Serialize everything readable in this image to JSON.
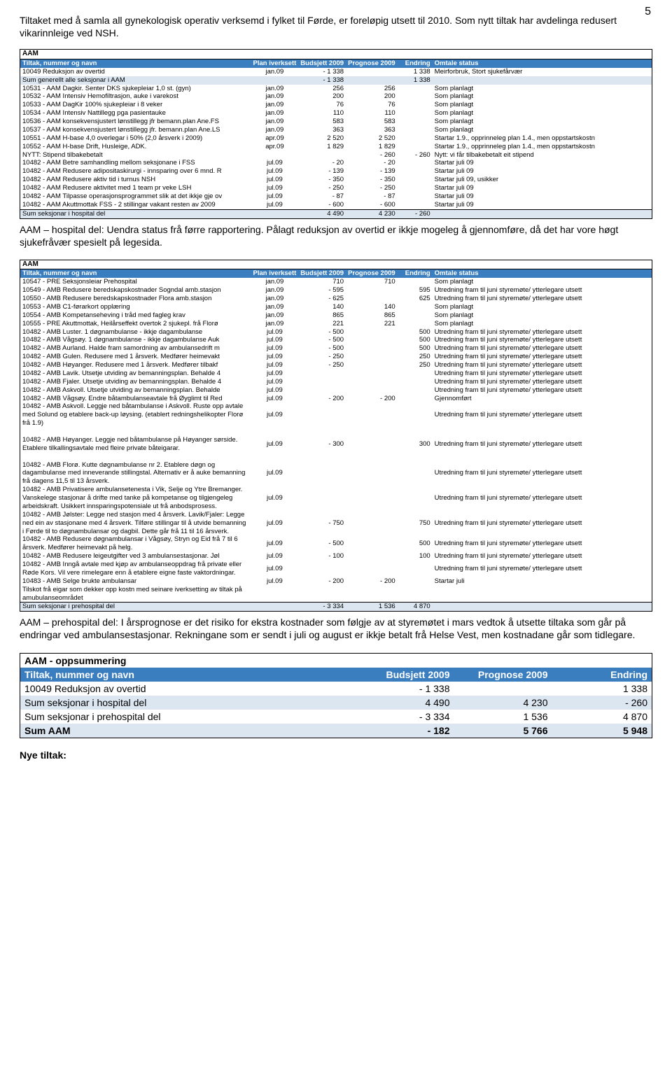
{
  "page_number": "5",
  "intro": "Tiltaket med å samla all gynekologisk operativ verksemd i fylket til Førde, er foreløpig utsett til 2010. Som nytt tiltak har avdelinga redusert vikarinnleige ved NSH.",
  "colors": {
    "header_bg": "#3a7ebf",
    "header_text": "#ffffff",
    "shade": "#dce6f1",
    "border": "#000000"
  },
  "tbl1": {
    "section": "AAM",
    "headers": {
      "name": "Tiltak, nummer og navn",
      "plan": "Plan iverksett",
      "bud": "Budsjett 2009",
      "prog": "Prognose 2009",
      "end": "Endring",
      "stat": "Omtale status"
    },
    "rows": [
      {
        "n": "10049 Reduksjon av overtid",
        "p": "jan.09",
        "b": "- 1 338",
        "pr": "",
        "e": "1 338",
        "s": "Meirforbruk, Stort sjukefårvær"
      },
      {
        "n": "Sum generellt alle seksjonar i AAM",
        "p": "",
        "b": "- 1 338",
        "pr": "",
        "e": "1 338",
        "s": "",
        "shade": true
      },
      {
        "n": "10531 - AAM Dagkir. Senter DKS sjukepleiar 1,0 st. (gyn)",
        "p": "jan.09",
        "b": "256",
        "pr": "256",
        "e": "",
        "s": "Som planlagt"
      },
      {
        "n": "10532 - AAM Intensiv Hemofiltrasjon, auke i varekost",
        "p": "jan.09",
        "b": "200",
        "pr": "200",
        "e": "",
        "s": "Som planlagt"
      },
      {
        "n": "10533 - AAM DagKir 100% sjukepleiar i 8 veker",
        "p": "jan.09",
        "b": "76",
        "pr": "76",
        "e": "",
        "s": "Som planlagt"
      },
      {
        "n": "10534 - AAM Intensiv Nattillegg pga pasientauke",
        "p": "jan.09",
        "b": "110",
        "pr": "110",
        "e": "",
        "s": "Som planlagt"
      },
      {
        "n": "10536 - AAM konsekvensjustert lønstillegg jfr bemann.plan Ane.FS",
        "p": "jan.09",
        "b": "583",
        "pr": "583",
        "e": "",
        "s": "Som planlagt"
      },
      {
        "n": "10537 - AAM konsekvensjustert lønstillegg jfr. bemann.plan Ane.LS",
        "p": "jan.09",
        "b": "363",
        "pr": "363",
        "e": "",
        "s": "Som planlagt"
      },
      {
        "n": "10551 - AAM H-base  4,0 overlegar i 50% (2,0 årsverk i 2009)",
        "p": "apr.09",
        "b": "2 520",
        "pr": "2 520",
        "e": "",
        "s": "Startar 1.9., opprinneleg plan 1.4., men oppstartskostn"
      },
      {
        "n": "10552 - AAM H-base  Drift, Husleige, ADK.",
        "p": "apr.09",
        "b": "1 829",
        "pr": "1 829",
        "e": "",
        "s": "Startar 1.9., opprinneleg plan 1.4., men oppstartskostn"
      },
      {
        "n": "NYTT: Stipend tilbakebetalt",
        "p": "",
        "b": "",
        "pr": "- 260",
        "e": "- 260",
        "s": "Nytt: vi får tilbakebetalt eit stipend"
      },
      {
        "n": "10482 - AAM Betre samhandling mellom seksjonane i FSS",
        "p": "jul.09",
        "b": "- 20",
        "pr": "- 20",
        "e": "",
        "s": "Startar juli 09"
      },
      {
        "n": "10482 - AAM Redusere adipositaskirurgi - innsparing over 6 mnd. R",
        "p": "jul.09",
        "b": "- 139",
        "pr": "- 139",
        "e": "",
        "s": "Startar juli 09"
      },
      {
        "n": "10482 - AAM Redusere aktiv tid i turnus NSH",
        "p": "jul.09",
        "b": "- 350",
        "pr": "- 350",
        "e": "",
        "s": "Startar juli 09, usikker"
      },
      {
        "n": "10482 - AAM Redusere aktivitet med 1 team pr veke LSH",
        "p": "jul.09",
        "b": "- 250",
        "pr": "- 250",
        "e": "",
        "s": "Startar juli 09"
      },
      {
        "n": "10482 - AAM Tilpasse operasjonsprogrammet slik at det ikkje gje ov",
        "p": "jul.09",
        "b": "- 87",
        "pr": "- 87",
        "e": "",
        "s": "Startar juli 09"
      },
      {
        "n": "10482 - AAM Akuttmottak FSS - 2 stillingar vakant resten av 2009",
        "p": "jul.09",
        "b": "- 600",
        "pr": "- 600",
        "e": "",
        "s": "Startar juli 09"
      },
      {
        "n": "Sum seksjonar i hospital del",
        "p": "",
        "b": "4 490",
        "pr": "4 230",
        "e": "- 260",
        "s": "",
        "shade": true,
        "sum": true
      }
    ]
  },
  "note1": "AAM – hospital del: Uendra status frå førre rapportering. Pålagt reduksjon av overtid er ikkje mogeleg å gjennomføre, då det har vore høgt sjukefråvær spesielt på legesida.",
  "tbl2": {
    "section": "AAM",
    "headers": {
      "name": "Tiltak, nummer og navn",
      "plan": "Plan iverksett",
      "bud": "Budsjett 2009",
      "prog": "Prognose 2009",
      "end": "Endring",
      "stat": "Omtale status"
    },
    "rows": [
      {
        "n": "10547 - PRE Seksjonsleiar Prehospital",
        "p": "jan.09",
        "b": "710",
        "pr": "710",
        "e": "",
        "s": "Som planlagt"
      },
      {
        "n": "10549 - AMB Redusere beredskapskostnader  Sogndal amb.stasjon",
        "p": "jan.09",
        "b": "- 595",
        "pr": "",
        "e": "595",
        "s": "Utredning fram til juni styremøte/ ytterlegare utsett"
      },
      {
        "n": "10550 - AMB Redusere beredskapskostnader Flora amb.stasjon",
        "p": "jan.09",
        "b": "- 625",
        "pr": "",
        "e": "625",
        "s": "Utredning fram til juni styremøte/ ytterlegare utsett"
      },
      {
        "n": "10553 - AMB C1-førarkort opplæring",
        "p": "jan.09",
        "b": "140",
        "pr": "140",
        "e": "",
        "s": "Som planlagt"
      },
      {
        "n": "10554 - AMB Kompetanseheving i tråd med fagleg krav",
        "p": "jan.09",
        "b": "865",
        "pr": "865",
        "e": "",
        "s": "Som planlagt"
      },
      {
        "n": "10555 - PRE Akuttmottak, Heilårseffekt overtok 2 sjukepl. frå Florø",
        "p": "jan.09",
        "b": "221",
        "pr": "221",
        "e": "",
        "s": "Som planlagt"
      },
      {
        "n": "10482 - AMB Luster. 1 døgnambulanse - ikkje dagambulanse",
        "p": "jul.09",
        "b": "- 500",
        "pr": "",
        "e": "500",
        "s": "Utredning fram til juni styremøte/ ytterlegare utsett"
      },
      {
        "n": "10482 - AMB Vågsøy. 1 døgnambulanse - ikkje dagambulanse Auk",
        "p": "jul.09",
        "b": "- 500",
        "pr": "",
        "e": "500",
        "s": "Utredning fram til juni styremøte/ ytterlegare utsett"
      },
      {
        "n": "10482 - AMB Aurland. Halde fram samordning av ambulansedrift m",
        "p": "jul.09",
        "b": "- 500",
        "pr": "",
        "e": "500",
        "s": "Utredning fram til juni styremøte/ ytterlegare utsett"
      },
      {
        "n": "10482 - AMB Gulen. Redusere med 1 årsverk. Medfører heimevakt",
        "p": "jul.09",
        "b": "- 250",
        "pr": "",
        "e": "250",
        "s": "Utredning fram til juni styremøte/ ytterlegare utsett"
      },
      {
        "n": "10482 - AMB Høyanger. Redusere med 1 årsverk. Medfører tilbakf",
        "p": "jul.09",
        "b": "- 250",
        "pr": "",
        "e": "250",
        "s": "Utredning fram til juni styremøte/ ytterlegare utsett"
      },
      {
        "n": "10482 - AMB Lavik. Utsetje utviding av bemanningsplan. Behalde 4",
        "p": "jul.09",
        "b": "",
        "pr": "",
        "e": "",
        "s": "Utredning fram til juni styremøte/ ytterlegare utsett"
      },
      {
        "n": "10482 - AMB Fjaler. Utsetje utviding av bemanningsplan. Behalde 4",
        "p": "jul.09",
        "b": "",
        "pr": "",
        "e": "",
        "s": "Utredning fram til juni styremøte/ ytterlegare utsett"
      },
      {
        "n": "10482 - AMB Askvoll. Utsetje utviding av bemanningsplan. Behalde",
        "p": "jul.09",
        "b": "",
        "pr": "",
        "e": "",
        "s": "Utredning fram til juni styremøte/ ytterlegare utsett"
      },
      {
        "n": "10482 - AMB Vågsøy. Endre båtambulanseavtale frå Øyglimt til Red",
        "p": "jul.09",
        "b": "- 200",
        "pr": "- 200",
        "e": "",
        "s": "Gjennomført"
      },
      {
        "n": "10482 - AMB Askvoll. Leggje ned båtambulanse i Askvoll. Ruste opp avtale med Solund og etablere back-up løysing. (etablert redningshelikopter Florø frå 1.9)",
        "p": "jul.09",
        "b": "",
        "pr": "",
        "e": "",
        "s": "Utredning fram til juni styremøte/ ytterlegare utsett",
        "wrap": true
      },
      {
        "spacer": true
      },
      {
        "n": "10482 - AMB Høyanger. Leggje ned båtambulanse på Høyanger sørside. Etablere tilkallingsavtale med fleire private båteigarar.",
        "p": "jul.09",
        "b": "- 300",
        "pr": "",
        "e": "300",
        "s": "Utredning fram til juni styremøte/ ytterlegare utsett",
        "wrap": true
      },
      {
        "spacer": true
      },
      {
        "n": "10482 - AMB Florø. Kutte døgnambulanse nr 2. Etablere døgn og dagambulanse med inneverande stillingstal. Alternativ er å auke bemanning frå dagens 11,5 til 13 årsverk.",
        "p": "jul.09",
        "b": "",
        "pr": "",
        "e": "",
        "s": "Utredning fram til juni styremøte/ ytterlegare utsett",
        "wrap": true
      },
      {
        "n": "10482 - AMB Privatisere ambulansetenesta i Vik, Selje og Ytre Bremanger. Vanskelege stasjonar å drifte med tanke på kompetanse og tilgjengeleg arbeidskraft. Usikkert innsparingspotensiale ut frå anbodsprosess.",
        "p": "jul.09",
        "b": "",
        "pr": "",
        "e": "",
        "s": "Utredning fram til juni styremøte/ ytterlegare utsett",
        "wrap": true
      },
      {
        "n": "10482 - AMB Jølster: Legge ned stasjon med 4 årsverk. Lavik/Fjaler: Legge ned ein av stasjonane med 4 årsverk. Tilføre stillingar til å utvide bemanning i Førde til to døgnambulansar og dagbil. Dette går frå 11 til 16 årsverk.",
        "p": "jul.09",
        "b": "- 750",
        "pr": "",
        "e": "750",
        "s": "Utredning fram til juni styremøte/ ytterlegare utsett",
        "wrap": true
      },
      {
        "n": "10482 - AMB Redusere døgnambulansar i Vågsøy, Stryn og Eid frå 7 til 6 årsverk. Medfører heimevakt på helg.",
        "p": "jul.09",
        "b": "- 500",
        "pr": "",
        "e": "500",
        "s": "Utredning fram til juni styremøte/ ytterlegare utsett",
        "wrap": true
      },
      {
        "n": "10482 - AMB Redusere leigeutgifter ved 3 ambulansestasjonar. Jøl",
        "p": "jul.09",
        "b": "- 100",
        "pr": "",
        "e": "100",
        "s": "Utredning fram til juni styremøte/ ytterlegare utsett"
      },
      {
        "n": "10482 - AMB Inngå avtale med kjøp av ambulanseoppdrag frå private eller Røde Kors. Vil vere rimelegare enn å etablere eigne faste vaktordningar.",
        "p": "jul.09",
        "b": "",
        "pr": "",
        "e": "",
        "s": "Utredning fram til juni styremøte/ ytterlegare utsett",
        "wrap": true
      },
      {
        "n": "10483 - AMB  Selge brukte ambulansar",
        "p": "jul.09",
        "b": "- 200",
        "pr": "- 200",
        "e": "",
        "s": "Startar juli"
      },
      {
        "n": "Tilskot frå eigar som dekker opp kostn med seinare iverksetting av tiltak på amubulanseområdet",
        "p": "",
        "b": "",
        "pr": "",
        "e": "",
        "s": "",
        "wrap": true
      },
      {
        "n": "Sum seksjonar i prehospital del",
        "p": "",
        "b": "- 3 334",
        "pr": "1 536",
        "e": "4 870",
        "s": "",
        "shade": true,
        "sum": true
      }
    ]
  },
  "note2": "AAM – prehospital del: I årsprognose er det risiko for ekstra kostnader som følgje av at styremøtet i mars vedtok å utsette tiltaka som går på endringar ved ambulansestasjonar. Rekningane som er sendt i juli og august er ikkje betalt frå Helse Vest, men kostnadane går som tidlegare.",
  "summary": {
    "section": "AAM - oppsummering",
    "headers": {
      "name": "Tiltak, nummer og navn",
      "bud": "Budsjett 2009",
      "prog": "Prognose 2009",
      "end": "Endring"
    },
    "rows": [
      {
        "n": "10049 Reduksjon av overtid",
        "b": "- 1 338",
        "pr": "",
        "e": "1 338"
      },
      {
        "n": "Sum seksjonar i hospital del",
        "b": "4 490",
        "pr": "4 230",
        "e": "- 260",
        "shade": true
      },
      {
        "n": "Sum seksjonar i prehospital del",
        "b": "- 3 334",
        "pr": "1 536",
        "e": "4 870"
      },
      {
        "n": "Sum AAM",
        "b": "- 182",
        "pr": "5 766",
        "e": "5 948",
        "shade": true,
        "bold": true
      }
    ]
  },
  "nye": "Nye tiltak:"
}
